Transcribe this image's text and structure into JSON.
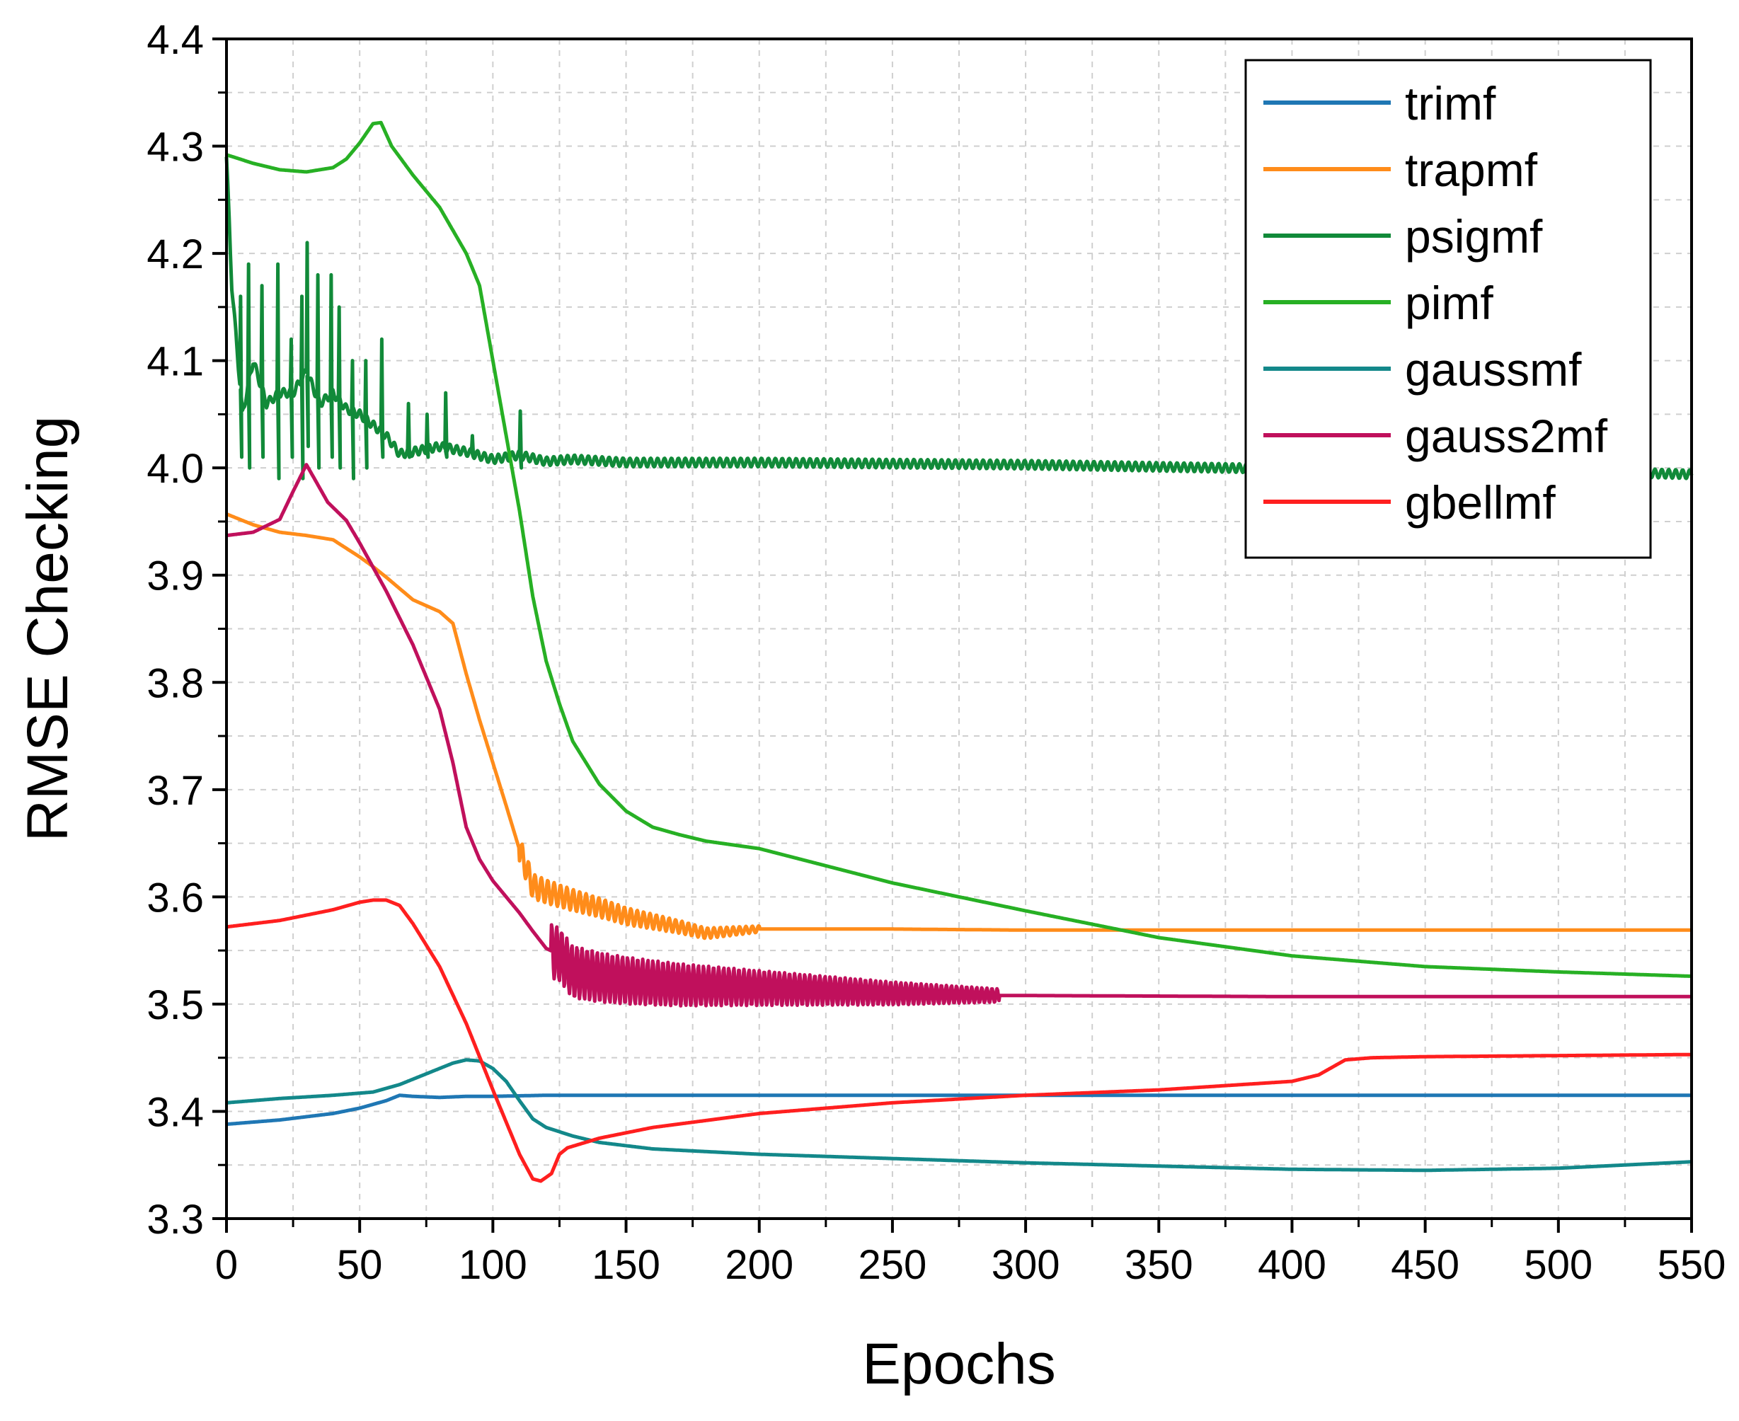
{
  "chart_data": {
    "type": "line",
    "title": "",
    "xlabel": "Epochs",
    "ylabel": "RMSE Checking",
    "xlim": [
      0,
      550
    ],
    "ylim": [
      3.3,
      4.4
    ],
    "xticks": [
      "0",
      "50",
      "100",
      "150",
      "200",
      "250",
      "300",
      "350",
      "400",
      "450",
      "500",
      "550"
    ],
    "xtick_values": [
      0,
      50,
      100,
      150,
      200,
      250,
      300,
      350,
      400,
      450,
      500,
      550
    ],
    "yticks": [
      "3.3",
      "3.4",
      "3.5",
      "3.6",
      "3.7",
      "3.8",
      "3.9",
      "4.0",
      "4.1",
      "4.2",
      "4.3",
      "4.4"
    ],
    "ytick_values": [
      3.3,
      3.4,
      3.5,
      3.6,
      3.7,
      3.8,
      3.9,
      4.0,
      4.1,
      4.2,
      4.3,
      4.4
    ],
    "grid": true,
    "legend_position": "top-right",
    "series": [
      {
        "name": "trimf",
        "color": "#1f77b4",
        "points": [
          [
            0,
            3.388
          ],
          [
            20,
            3.392
          ],
          [
            40,
            3.398
          ],
          [
            50,
            3.403
          ],
          [
            60,
            3.41
          ],
          [
            65,
            3.415
          ],
          [
            70,
            3.414
          ],
          [
            80,
            3.413
          ],
          [
            90,
            3.414
          ],
          [
            100,
            3.414
          ],
          [
            120,
            3.415
          ],
          [
            150,
            3.415
          ],
          [
            200,
            3.415
          ],
          [
            300,
            3.415
          ],
          [
            400,
            3.415
          ],
          [
            500,
            3.415
          ],
          [
            550,
            3.415
          ]
        ]
      },
      {
        "name": "trapmf",
        "color": "#ff8c1a",
        "osc_start": 110,
        "osc_end": 200,
        "osc_amp": 0.012,
        "osc_period": 2.4,
        "points": [
          [
            0,
            3.957
          ],
          [
            10,
            3.947
          ],
          [
            20,
            3.94
          ],
          [
            30,
            3.937
          ],
          [
            40,
            3.933
          ],
          [
            50,
            3.917
          ],
          [
            55,
            3.908
          ],
          [
            60,
            3.898
          ],
          [
            70,
            3.877
          ],
          [
            80,
            3.866
          ],
          [
            85,
            3.855
          ],
          [
            90,
            3.808
          ],
          [
            95,
            3.765
          ],
          [
            100,
            3.725
          ],
          [
            105,
            3.685
          ],
          [
            110,
            3.644
          ],
          [
            115,
            3.61
          ],
          [
            120,
            3.605
          ],
          [
            130,
            3.597
          ],
          [
            140,
            3.59
          ],
          [
            150,
            3.582
          ],
          [
            160,
            3.577
          ],
          [
            170,
            3.572
          ],
          [
            180,
            3.566
          ],
          [
            190,
            3.568
          ],
          [
            200,
            3.57
          ],
          [
            250,
            3.57
          ],
          [
            300,
            3.569
          ],
          [
            350,
            3.569
          ],
          [
            450,
            3.569
          ],
          [
            550,
            3.569
          ]
        ]
      },
      {
        "name": "psigmf",
        "color": "#118a39",
        "osc_start": 0,
        "osc_end": 550,
        "osc_amp": 0.004,
        "osc_period": 2.6,
        "points": [
          [
            0,
            4.29
          ],
          [
            2,
            4.17
          ],
          [
            6,
            4.05
          ],
          [
            10,
            4.1
          ],
          [
            15,
            4.06
          ],
          [
            20,
            4.07
          ],
          [
            25,
            4.07
          ],
          [
            30,
            4.09
          ],
          [
            35,
            4.06
          ],
          [
            40,
            4.07
          ],
          [
            45,
            4.055
          ],
          [
            50,
            4.05
          ],
          [
            55,
            4.04
          ],
          [
            60,
            4.03
          ],
          [
            65,
            4.013
          ],
          [
            70,
            4.015
          ],
          [
            80,
            4.02
          ],
          [
            90,
            4.015
          ],
          [
            100,
            4.008
          ],
          [
            110,
            4.012
          ],
          [
            120,
            4.006
          ],
          [
            130,
            4.008
          ],
          [
            150,
            4.005
          ],
          [
            200,
            4.005
          ],
          [
            300,
            4.003
          ],
          [
            400,
            3.999
          ],
          [
            500,
            3.997
          ],
          [
            550,
            3.994
          ]
        ],
        "spikes": [
          [
            5,
            4.16,
            4.01
          ],
          [
            8,
            4.19,
            4.0
          ],
          [
            13,
            4.17,
            4.01
          ],
          [
            19,
            4.19,
            3.99
          ],
          [
            24,
            4.12,
            4.01
          ],
          [
            28,
            4.16,
            3.99
          ],
          [
            30,
            4.21,
            4.02
          ],
          [
            34,
            4.18,
            4.0
          ],
          [
            39,
            4.18,
            4.01
          ],
          [
            42,
            4.15,
            4.0
          ],
          [
            47,
            4.1,
            3.99
          ],
          [
            52,
            4.1,
            4.0
          ],
          [
            58,
            4.12,
            4.01
          ],
          [
            68,
            4.06,
            4.01
          ],
          [
            75,
            4.05,
            4.01
          ],
          [
            82,
            4.07,
            4.01
          ],
          [
            92,
            4.03,
            4.01
          ],
          [
            110,
            4.053,
            4.0
          ]
        ]
      },
      {
        "name": "pimf",
        "color": "#27b024",
        "points": [
          [
            0,
            4.292
          ],
          [
            10,
            4.284
          ],
          [
            20,
            4.278
          ],
          [
            30,
            4.276
          ],
          [
            40,
            4.28
          ],
          [
            45,
            4.288
          ],
          [
            50,
            4.303
          ],
          [
            55,
            4.321
          ],
          [
            58,
            4.322
          ],
          [
            62,
            4.3
          ],
          [
            70,
            4.273
          ],
          [
            80,
            4.243
          ],
          [
            90,
            4.2
          ],
          [
            95,
            4.17
          ],
          [
            100,
            4.1
          ],
          [
            105,
            4.03
          ],
          [
            110,
            3.96
          ],
          [
            115,
            3.88
          ],
          [
            120,
            3.82
          ],
          [
            125,
            3.78
          ],
          [
            130,
            3.745
          ],
          [
            140,
            3.705
          ],
          [
            150,
            3.68
          ],
          [
            160,
            3.665
          ],
          [
            170,
            3.658
          ],
          [
            180,
            3.652
          ],
          [
            200,
            3.645
          ],
          [
            250,
            3.613
          ],
          [
            300,
            3.587
          ],
          [
            350,
            3.562
          ],
          [
            400,
            3.545
          ],
          [
            450,
            3.535
          ],
          [
            500,
            3.53
          ],
          [
            550,
            3.526
          ]
        ]
      },
      {
        "name": "gaussmf",
        "color": "#13888a",
        "points": [
          [
            0,
            3.408
          ],
          [
            20,
            3.412
          ],
          [
            40,
            3.415
          ],
          [
            55,
            3.418
          ],
          [
            65,
            3.425
          ],
          [
            75,
            3.435
          ],
          [
            85,
            3.445
          ],
          [
            90,
            3.448
          ],
          [
            95,
            3.447
          ],
          [
            100,
            3.44
          ],
          [
            105,
            3.428
          ],
          [
            110,
            3.41
          ],
          [
            115,
            3.393
          ],
          [
            120,
            3.385
          ],
          [
            130,
            3.377
          ],
          [
            140,
            3.371
          ],
          [
            160,
            3.365
          ],
          [
            200,
            3.36
          ],
          [
            250,
            3.356
          ],
          [
            300,
            3.352
          ],
          [
            350,
            3.349
          ],
          [
            400,
            3.346
          ],
          [
            450,
            3.345
          ],
          [
            500,
            3.347
          ],
          [
            550,
            3.353
          ]
        ]
      },
      {
        "name": "gauss2mf",
        "color": "#c0105c",
        "osc_start": 122,
        "osc_end": 290,
        "osc_amp": 0.025,
        "osc_period": 1.9,
        "points": [
          [
            0,
            3.937
          ],
          [
            10,
            3.94
          ],
          [
            20,
            3.952
          ],
          [
            25,
            3.978
          ],
          [
            30,
            4.003
          ],
          [
            33,
            3.99
          ],
          [
            38,
            3.968
          ],
          [
            45,
            3.951
          ],
          [
            50,
            3.93
          ],
          [
            60,
            3.885
          ],
          [
            70,
            3.835
          ],
          [
            80,
            3.775
          ],
          [
            85,
            3.725
          ],
          [
            90,
            3.665
          ],
          [
            95,
            3.635
          ],
          [
            100,
            3.615
          ],
          [
            110,
            3.585
          ],
          [
            115,
            3.568
          ],
          [
            120,
            3.552
          ],
          [
            125,
            3.546
          ],
          [
            130,
            3.53
          ],
          [
            140,
            3.525
          ],
          [
            150,
            3.522
          ],
          [
            170,
            3.518
          ],
          [
            200,
            3.515
          ],
          [
            250,
            3.51
          ],
          [
            290,
            3.508
          ],
          [
            300,
            3.508
          ],
          [
            400,
            3.507
          ],
          [
            550,
            3.507
          ]
        ]
      },
      {
        "name": "gbellmf",
        "color": "#ff1f1f",
        "points": [
          [
            0,
            3.572
          ],
          [
            20,
            3.578
          ],
          [
            40,
            3.588
          ],
          [
            50,
            3.595
          ],
          [
            55,
            3.597
          ],
          [
            60,
            3.597
          ],
          [
            65,
            3.592
          ],
          [
            70,
            3.575
          ],
          [
            80,
            3.535
          ],
          [
            90,
            3.482
          ],
          [
            100,
            3.42
          ],
          [
            110,
            3.36
          ],
          [
            115,
            3.337
          ],
          [
            118,
            3.335
          ],
          [
            122,
            3.342
          ],
          [
            125,
            3.36
          ],
          [
            128,
            3.366
          ],
          [
            140,
            3.375
          ],
          [
            160,
            3.385
          ],
          [
            200,
            3.398
          ],
          [
            250,
            3.408
          ],
          [
            300,
            3.415
          ],
          [
            350,
            3.42
          ],
          [
            400,
            3.428
          ],
          [
            410,
            3.434
          ],
          [
            420,
            3.448
          ],
          [
            430,
            3.45
          ],
          [
            450,
            3.451
          ],
          [
            500,
            3.452
          ],
          [
            550,
            3.453
          ]
        ]
      }
    ]
  }
}
